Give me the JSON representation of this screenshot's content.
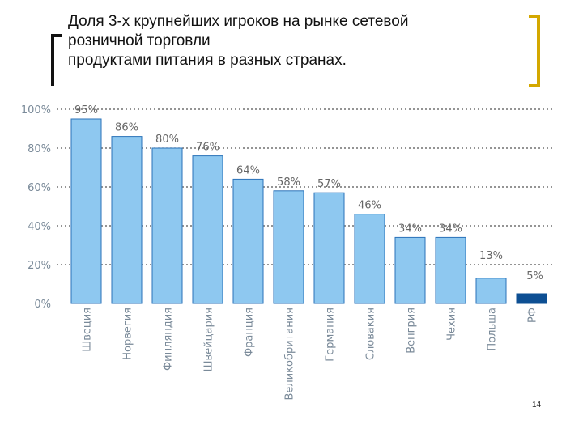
{
  "slide": {
    "title_lines": [
      "Доля 3-х крупнейших игроков на рынке сетевой",
      "розничной торговли",
      "продуктами питания в разных странах."
    ],
    "page_number": "14"
  },
  "colors": {
    "bar": "#8ec8f0",
    "bar_stroke": "#2a72b8",
    "highlight_bar": "#0d4f93",
    "axis_text": "#7a8a99",
    "label_text": "#666666",
    "grid": "#555555",
    "accent": "#d4a800"
  },
  "chart_data": {
    "type": "bar",
    "title": "",
    "xlabel": "",
    "ylabel": "",
    "ylim": [
      0,
      100
    ],
    "yticks": [
      "0%",
      "20%",
      "40%",
      "60%",
      "80%",
      "100%"
    ],
    "ytick_values": [
      0,
      20,
      40,
      60,
      80,
      100
    ],
    "grid": true,
    "categories": [
      "Швеция",
      "Норвегия",
      "Финляндия",
      "Швейцария",
      "Франция",
      "Великобритания",
      "Германия",
      "Словакия",
      "Венгрия",
      "Чехия",
      "Польша",
      "РФ"
    ],
    "values": [
      95,
      86,
      80,
      76,
      64,
      58,
      57,
      46,
      34,
      34,
      13,
      5
    ],
    "value_labels": [
      "95%",
      "86%",
      "80%",
      "76%",
      "64%",
      "58%",
      "57%",
      "46%",
      "34%",
      "34%",
      "13%",
      "5%"
    ],
    "highlight": "РФ"
  }
}
